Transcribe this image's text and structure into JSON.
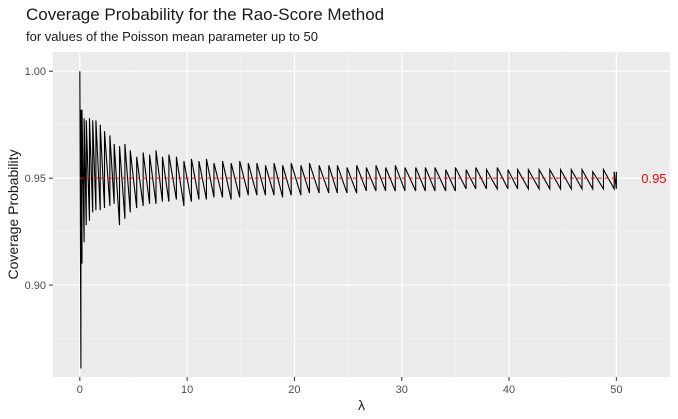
{
  "chart_data": {
    "type": "line",
    "title": "Coverage Probability for the Rao-Score Method",
    "subtitle": "for values of the Poisson mean parameter up to 50",
    "xlabel": "λ",
    "ylabel": "Coverage Probability",
    "xlim": [
      -2.5,
      55
    ],
    "ylim": [
      0.857,
      1.009
    ],
    "x_ticks": [
      0,
      10,
      20,
      30,
      40,
      50
    ],
    "x_tick_labels": [
      "0",
      "10",
      "20",
      "30",
      "40",
      "50"
    ],
    "y_ticks": [
      0.9,
      0.95,
      1.0
    ],
    "y_tick_labels": [
      "0.90",
      "0.95",
      "1.00"
    ],
    "grid": true,
    "series": [
      {
        "color": "#000000",
        "description": "sawtooth oscillation; each segment rises from trough to peak then drops vertically",
        "x": [
          0.0,
          0.1,
          0.2,
          0.4,
          0.6,
          0.9,
          1.2,
          1.5,
          1.9,
          2.3,
          2.8,
          3.2,
          3.7,
          4.2,
          4.7,
          5.3,
          5.9,
          6.5,
          7.1,
          7.7,
          8.3,
          9.0,
          9.7,
          10.4,
          11.1,
          11.8,
          12.5,
          13.3,
          14.1,
          14.9,
          15.7,
          16.5,
          17.3,
          18.1,
          18.9,
          19.7,
          20.6,
          21.4,
          22.3,
          23.2,
          24.0,
          24.9,
          25.8,
          26.7,
          27.6,
          28.5,
          29.4,
          30.3,
          31.3,
          32.2,
          33.1,
          34.1,
          35.0,
          36.0,
          36.9,
          37.9,
          38.9,
          39.9,
          40.8,
          41.8,
          42.8,
          43.8,
          44.8,
          45.8,
          46.8,
          47.8,
          48.8,
          49.8,
          50.0
        ],
        "peaks": [
          1.0,
          0.982,
          0.982,
          0.978,
          0.977,
          0.978,
          0.977,
          0.977,
          0.975,
          0.972,
          0.97,
          0.966,
          0.965,
          0.966,
          0.963,
          0.96,
          0.962,
          0.961,
          0.963,
          0.96,
          0.961,
          0.96,
          0.958,
          0.959,
          0.958,
          0.959,
          0.957,
          0.958,
          0.957,
          0.958,
          0.957,
          0.957,
          0.956,
          0.957,
          0.956,
          0.957,
          0.956,
          0.957,
          0.956,
          0.956,
          0.956,
          0.955,
          0.956,
          0.955,
          0.956,
          0.955,
          0.956,
          0.955,
          0.955,
          0.955,
          0.955,
          0.954,
          0.955,
          0.954,
          0.955,
          0.954,
          0.955,
          0.954,
          0.954,
          0.954,
          0.954,
          0.954,
          0.954,
          0.954,
          0.954,
          0.953,
          0.954,
          0.953,
          0.953
        ],
        "troughs": [
          0.861,
          0.91,
          0.92,
          0.928,
          0.93,
          0.934,
          0.935,
          0.935,
          0.936,
          0.937,
          0.938,
          0.928,
          0.931,
          0.934,
          0.936,
          0.937,
          0.938,
          0.938,
          0.939,
          0.939,
          0.94,
          0.937,
          0.939,
          0.94,
          0.94,
          0.941,
          0.941,
          0.94,
          0.941,
          0.942,
          0.942,
          0.942,
          0.942,
          0.941,
          0.942,
          0.942,
          0.943,
          0.943,
          0.943,
          0.943,
          0.943,
          0.943,
          0.944,
          0.944,
          0.944,
          0.944,
          0.944,
          0.944,
          0.944,
          0.944,
          0.944,
          0.944,
          0.945,
          0.945,
          0.945,
          0.945,
          0.945,
          0.945,
          0.945,
          0.945,
          0.945,
          0.945,
          0.945,
          0.945,
          0.945,
          0.945,
          0.945,
          0.945,
          0.945
        ]
      }
    ],
    "reference_line": {
      "y": 0.95,
      "color": "#ff0000",
      "style": "dashed",
      "label": "0.95"
    }
  }
}
